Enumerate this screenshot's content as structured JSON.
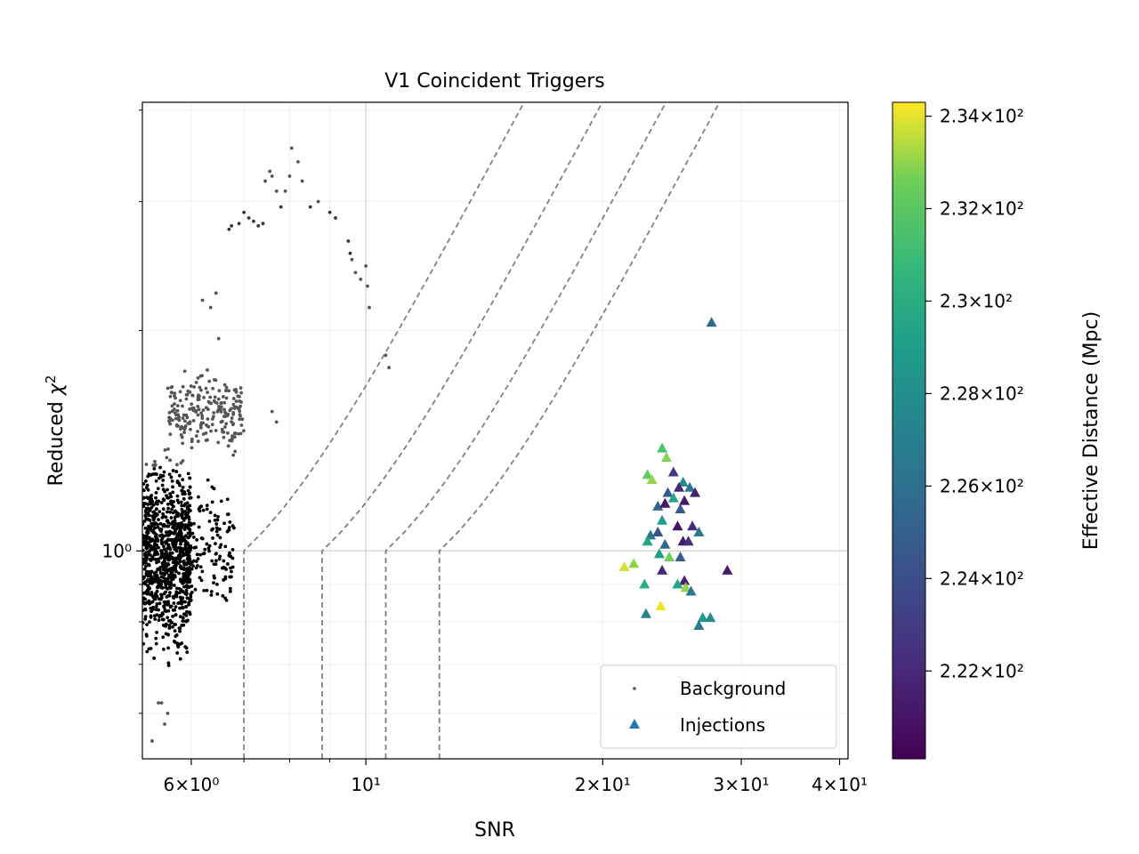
{
  "chart_data": {
    "type": "scatter",
    "title": "V1 Coincident Triggers",
    "xlabel": "SNR",
    "ylabel": "Reduced χ²",
    "x_scale": "log",
    "y_scale": "log",
    "xlim": [
      5.2,
      41
    ],
    "ylim": [
      0.52,
      4.1
    ],
    "x_ticks": [
      {
        "value": 6,
        "label": "6×10⁰"
      },
      {
        "value": 10,
        "label": "10¹"
      },
      {
        "value": 20,
        "label": "2×10¹"
      },
      {
        "value": 30,
        "label": "3×10¹"
      },
      {
        "value": 40,
        "label": "4×10¹"
      }
    ],
    "y_ticks": [
      {
        "value": 1,
        "label": "10⁰"
      }
    ],
    "grid": true,
    "legend": {
      "location": "lower-right",
      "entries": [
        {
          "label": "Background",
          "marker": "dot",
          "color": "#555555"
        },
        {
          "label": "Injections",
          "marker": "triangle",
          "color": "#1f77b4"
        }
      ]
    },
    "colorbar": {
      "label": "Effective Distance (Mpc)",
      "colormap": "viridis",
      "range": [
        220.1,
        234.3
      ],
      "ticks": [
        {
          "value": 234,
          "label": "2.34×10²"
        },
        {
          "value": 232,
          "label": "2.32×10²"
        },
        {
          "value": 230,
          "label": "2.3×10²"
        },
        {
          "value": 228,
          "label": "2.28×10²"
        },
        {
          "value": 226,
          "label": "2.26×10²"
        },
        {
          "value": 224,
          "label": "2.24×10²"
        },
        {
          "value": 222,
          "label": "2.22×10²"
        }
      ]
    },
    "threshold_curves": {
      "style": "dashed",
      "color": "#808080",
      "snr_knees": [
        7.0,
        8.8,
        10.6,
        12.4
      ]
    },
    "series": [
      {
        "name": "Background",
        "marker": "dot",
        "clusters": [
          {
            "x_range": [
              5.2,
              6.0
            ],
            "y_range": [
              0.66,
              1.45
            ],
            "count": 900
          },
          {
            "x_range": [
              5.8,
              6.8
            ],
            "y_range": [
              0.78,
              1.3
            ],
            "count": 160
          },
          {
            "x_range": [
              5.6,
              7.0
            ],
            "y_range": [
              1.3,
              1.85
            ],
            "count": 220
          }
        ],
        "points": [
          [
            6.7,
            2.75
          ],
          [
            6.75,
            2.78
          ],
          [
            6.9,
            2.8
          ],
          [
            7.0,
            2.9
          ],
          [
            7.1,
            2.85
          ],
          [
            7.2,
            2.82
          ],
          [
            7.3,
            2.78
          ],
          [
            7.4,
            2.8
          ],
          [
            7.45,
            3.2
          ],
          [
            7.55,
            3.3
          ],
          [
            7.6,
            3.25
          ],
          [
            7.7,
            3.1
          ],
          [
            7.8,
            2.95
          ],
          [
            7.9,
            3.1
          ],
          [
            8.0,
            3.25
          ],
          [
            8.05,
            3.55
          ],
          [
            8.2,
            3.4
          ],
          [
            8.3,
            3.2
          ],
          [
            8.5,
            2.95
          ],
          [
            8.7,
            3.0
          ],
          [
            9.0,
            2.9
          ],
          [
            9.15,
            2.85
          ],
          [
            9.5,
            2.65
          ],
          [
            9.55,
            2.55
          ],
          [
            9.6,
            2.5
          ],
          [
            9.7,
            2.4
          ],
          [
            9.85,
            2.35
          ],
          [
            10.0,
            2.45
          ],
          [
            10.05,
            2.3
          ],
          [
            10.1,
            2.15
          ],
          [
            10.6,
            1.85
          ],
          [
            10.7,
            1.78
          ],
          [
            6.2,
            2.2
          ],
          [
            6.35,
            2.15
          ],
          [
            6.45,
            2.25
          ],
          [
            6.5,
            1.95
          ],
          [
            7.6,
            1.55
          ],
          [
            7.7,
            1.5
          ],
          [
            5.35,
            0.55
          ],
          [
            5.55,
            0.58
          ],
          [
            5.6,
            0.6
          ],
          [
            5.45,
            0.62
          ],
          [
            5.5,
            0.62
          ]
        ]
      },
      {
        "name": "Injections",
        "marker": "triangle",
        "color_by": "effective_distance",
        "points": [
          [
            27.5,
            2.05,
            225.5
          ],
          [
            23.8,
            1.38,
            231.5
          ],
          [
            24.1,
            1.34,
            232.8
          ],
          [
            22.8,
            1.27,
            232.2
          ],
          [
            23.1,
            1.25,
            233.0
          ],
          [
            24.6,
            1.28,
            222.9
          ],
          [
            25.3,
            1.24,
            227.8
          ],
          [
            24.2,
            1.2,
            224.6
          ],
          [
            25.8,
            1.22,
            226.1
          ],
          [
            26.2,
            1.2,
            221.5
          ],
          [
            25.0,
            1.22,
            222.0
          ],
          [
            24.6,
            1.18,
            229.5
          ],
          [
            25.4,
            1.17,
            221.2
          ],
          [
            23.5,
            1.15,
            225.2
          ],
          [
            24.0,
            1.16,
            221.1
          ],
          [
            25.1,
            1.14,
            224.8
          ],
          [
            23.8,
            1.1,
            229.0
          ],
          [
            24.9,
            1.08,
            221.0
          ],
          [
            26.0,
            1.08,
            222.1
          ],
          [
            23.0,
            1.05,
            226.5
          ],
          [
            23.5,
            1.06,
            224.0
          ],
          [
            26.5,
            1.06,
            226.6
          ],
          [
            22.8,
            1.03,
            229.5
          ],
          [
            25.3,
            1.03,
            221.3
          ],
          [
            25.7,
            1.03,
            222.4
          ],
          [
            24.0,
            1.02,
            225.5
          ],
          [
            23.6,
            0.99,
            228.8
          ],
          [
            24.3,
            0.98,
            232.5
          ],
          [
            25.1,
            0.98,
            224.8
          ],
          [
            21.3,
            0.95,
            233.8
          ],
          [
            21.9,
            0.96,
            232.9
          ],
          [
            23.8,
            0.94,
            222.0
          ],
          [
            28.8,
            0.94,
            221.3
          ],
          [
            25.4,
            0.91,
            221.6
          ],
          [
            22.6,
            0.9,
            230.2
          ],
          [
            24.9,
            0.9,
            229.4
          ],
          [
            25.5,
            0.89,
            233.0
          ],
          [
            25.9,
            0.88,
            226.4
          ],
          [
            23.7,
            0.84,
            234.1
          ],
          [
            22.7,
            0.82,
            227.2
          ],
          [
            26.8,
            0.81,
            228.7
          ],
          [
            27.4,
            0.81,
            227.8
          ],
          [
            26.5,
            0.79,
            226.5
          ]
        ]
      }
    ]
  }
}
